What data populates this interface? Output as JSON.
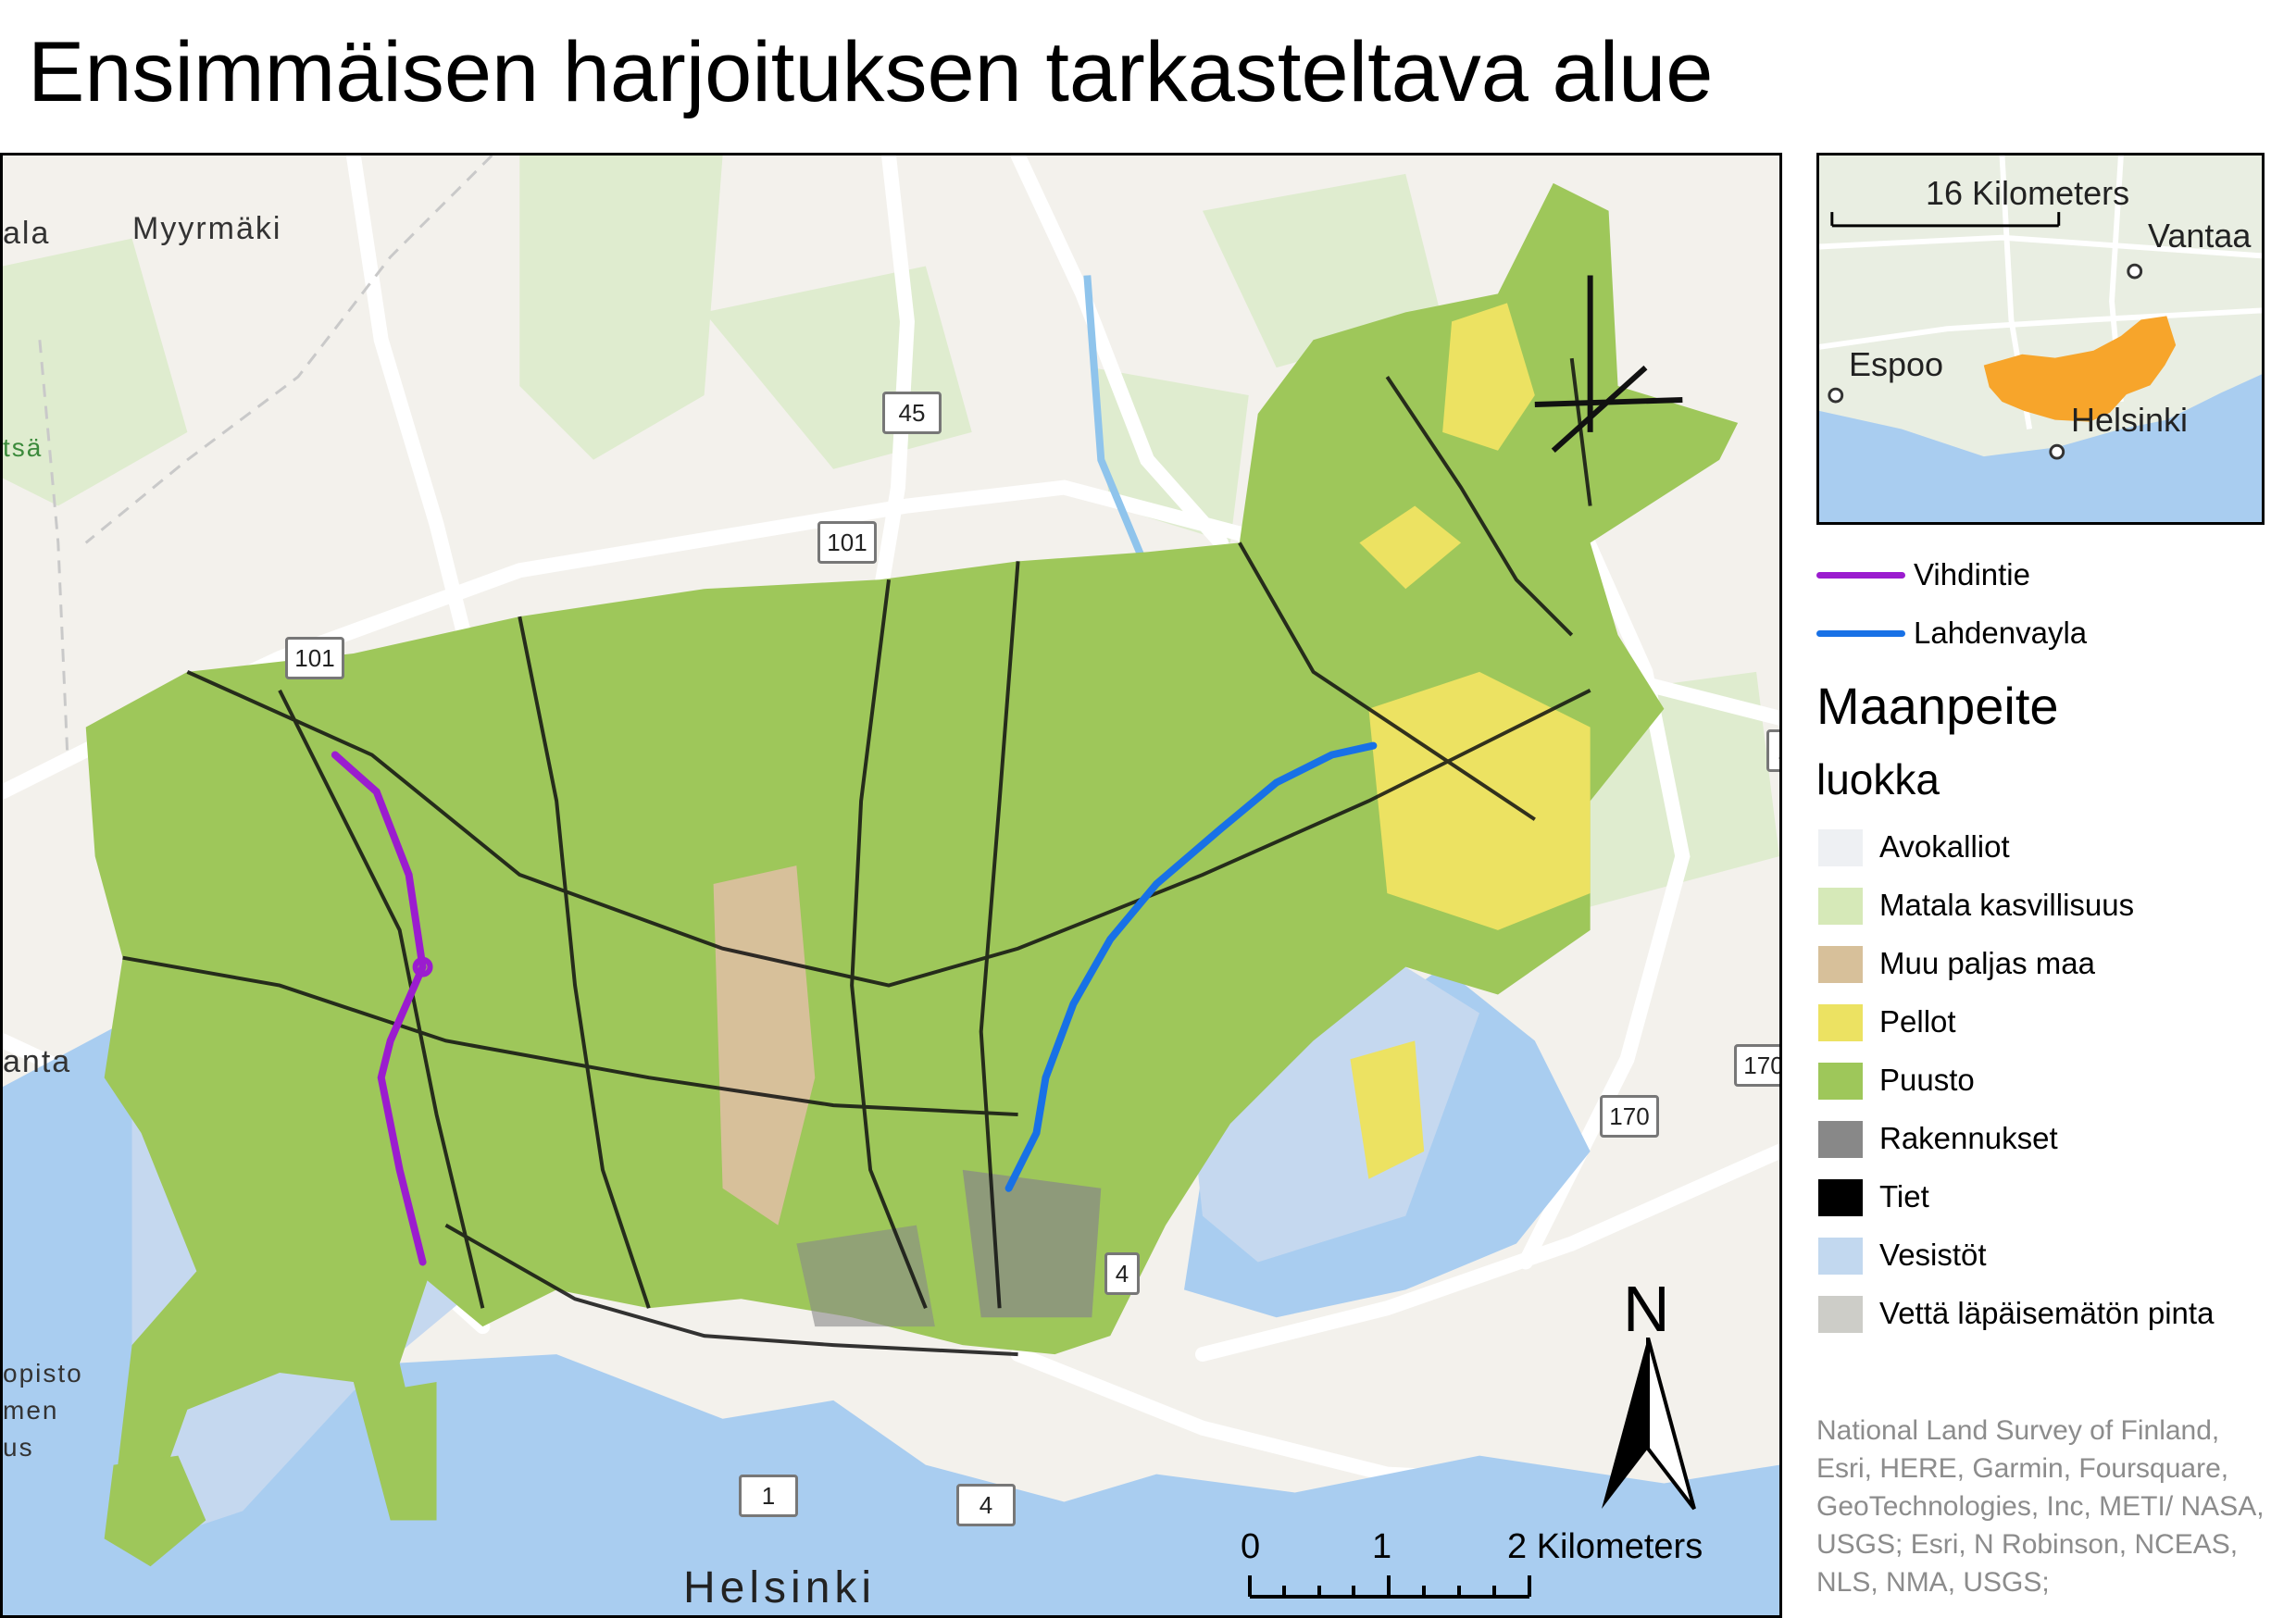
{
  "title": "Ensimmäisen harjoituksen tarkasteltava alue",
  "map": {
    "place_labels": {
      "myyrmaki": "Myyrmäki",
      "ala": "ala",
      "tsa": "tsä",
      "anta": "anta",
      "opisto": "opisto",
      "men": "men",
      "us": "us",
      "helsinki": "Helsinki"
    },
    "road_shields": [
      "45",
      "101",
      "101",
      "170",
      "170",
      "1",
      "4",
      "1",
      "4"
    ]
  },
  "inset": {
    "scale_label": "16 Kilometers",
    "places": {
      "vantaa": "Vantaa",
      "espoo": "Espoo",
      "helsinki": "Helsinki"
    },
    "study_area_color": "#f7a52b"
  },
  "legend": {
    "lines": [
      {
        "label": "Vihdintie",
        "color": "#9b1ccf"
      },
      {
        "label": "Lahdenvayla",
        "color": "#1871e6"
      }
    ],
    "heading": "Maanpeite",
    "subheading": "luokka",
    "classes": [
      {
        "label": "Avokalliot",
        "color": "#eef0f3"
      },
      {
        "label": "Matala kasvillisuus",
        "color": "#d6e9b8"
      },
      {
        "label": "Muu paljas maa",
        "color": "#d7c09a"
      },
      {
        "label": "Pellot",
        "color": "#ece262"
      },
      {
        "label": "Puusto",
        "color": "#9ec75a"
      },
      {
        "label": "Rakennukset",
        "color": "#888888"
      },
      {
        "label": "Tiet",
        "color": "#000000"
      },
      {
        "label": "Vesistöt",
        "color": "#c2d8ef"
      },
      {
        "label": "Vettä läpäisemätön pinta",
        "color": "#cdcdc8"
      }
    ]
  },
  "north_arrow": {
    "label": "N"
  },
  "scale_bar": {
    "ticks": [
      "0",
      "1",
      "2 Kilometers"
    ]
  },
  "credits": "National Land Survey of Finland, Esri, HERE, Garmin, Foursquare, GeoTechnologies, Inc, METI/ NASA, USGS; Esri, N Robinson, NCEAS, NLS, NMA, USGS;"
}
